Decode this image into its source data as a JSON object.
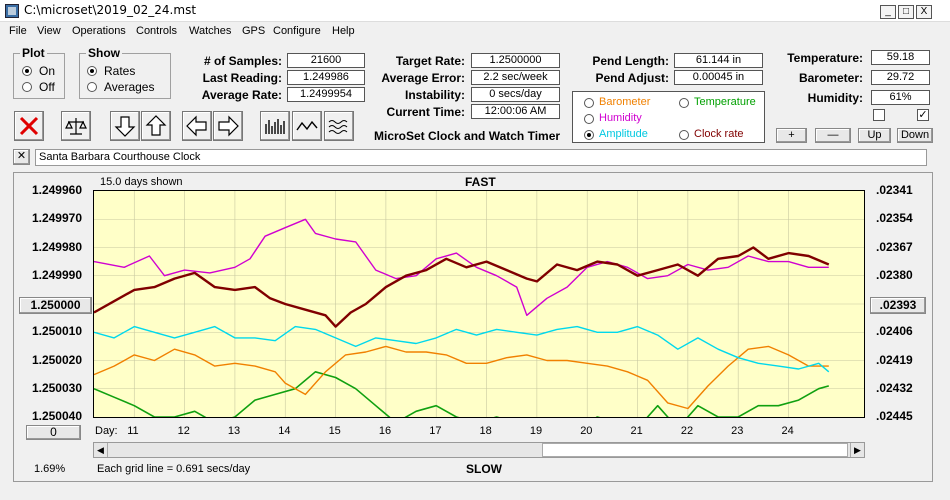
{
  "window": {
    "title": "C:\\microset\\2019_02_24.mst",
    "min_label": "_",
    "max_label": "□",
    "close_label": "X"
  },
  "menu": [
    "File",
    "View",
    "Operations",
    "Controls",
    "Watches",
    "GPS",
    "Configure",
    "Help"
  ],
  "plot_group": {
    "title": "Plot",
    "on": "On",
    "off": "Off",
    "selected": "On"
  },
  "show_group": {
    "title": "Show",
    "rates": "Rates",
    "averages": "Averages",
    "selected": "Rates"
  },
  "stats": {
    "samples_label": "# of Samples:",
    "samples": "21600",
    "last_label": "Last Reading:",
    "last": "1.249986",
    "avg_label": "Average Rate:",
    "avg": "1.2499954"
  },
  "rate": {
    "target_label": "Target Rate:",
    "target": "1.2500000",
    "error_label": "Average Error:",
    "error": "2.2 sec/week",
    "instab_label": "Instability:",
    "instab": "0 secs/day",
    "time_label": "Current Time:",
    "time": "12:00:06 AM"
  },
  "subtitle": "MicroSet Clock and Watch Timer",
  "pend": {
    "length_label": "Pend Length:",
    "length": "61.144 in",
    "adjust_label": "Pend Adjust:",
    "adjust": "0.00045 in"
  },
  "overlay": {
    "barometer": "Barometer",
    "temperature": "Temperature",
    "humidity": "Humidity",
    "amplitude": "Amplitude",
    "clock_rate": "Clock rate",
    "selected": "Amplitude"
  },
  "env": {
    "temp_label": "Temperature:",
    "temp": "59.18",
    "baro_label": "Barometer:",
    "baro": "29.72",
    "hum_label": "Humidity:",
    "hum": "61%",
    "btn_plus": "+",
    "btn_minus": "—",
    "btn_up": "Up",
    "btn_down": "Down",
    "check1": false,
    "check2": true
  },
  "clock_name": "Santa Barbara Courthouse Clock",
  "name_close": "✕",
  "colors": {
    "barometer": "#f08000",
    "temperature": "#00a000",
    "humidity": "#d000d0",
    "amplitude": "#00e0f0",
    "rate": "#800000",
    "plot_bg": "#ffffc8"
  },
  "chart_data": {
    "type": "line",
    "top_label": "FAST",
    "bottom_label": "SLOW",
    "days_shown": "15.0 days shown",
    "grid_note": "Each grid line = 0.691 secs/day",
    "percent": "1.69%",
    "x_axis_label": "Day:",
    "x_ticks": [
      "11",
      "12",
      "13",
      "14",
      "15",
      "16",
      "17",
      "18",
      "19",
      "20",
      "21",
      "22",
      "23",
      "24"
    ],
    "y_left_ticks": [
      "1.249960",
      "1.249970",
      "1.249980",
      "1.249990",
      "1.250000",
      "1.250010",
      "1.250020",
      "1.250030",
      "1.250040"
    ],
    "y_left_center_button": "1.250000",
    "y_left_bottom_button": "0",
    "y_right_ticks": [
      ".02341",
      ".02354",
      ".02367",
      ".02380",
      ".02393",
      ".02406",
      ".02419",
      ".02432",
      ".02445"
    ],
    "y_right_center_button": ".02393",
    "ylim": [
      1.24996,
      1.25004
    ],
    "xlim": [
      10.2,
      25.5
    ],
    "series": [
      {
        "name": "Clock rate",
        "color": "#800000",
        "width": 2.4,
        "x": [
          10.2,
          10.6,
          11.0,
          11.4,
          11.8,
          12.2,
          12.6,
          13.0,
          13.4,
          13.7,
          14.0,
          14.4,
          14.8,
          15.0,
          15.3,
          15.6,
          16.0,
          16.4,
          16.8,
          17.2,
          17.6,
          18.0,
          18.4,
          18.8,
          19.0,
          19.4,
          19.8,
          20.2,
          20.6,
          21.0,
          21.4,
          21.8,
          22.2,
          22.6,
          23.0,
          23.3,
          23.6,
          24.0,
          24.4,
          24.8
        ],
        "y": [
          1.250003,
          1.249999,
          1.249995,
          1.249994,
          1.249991,
          1.249989,
          1.249994,
          1.249995,
          1.249994,
          1.249998,
          1.25,
          1.250002,
          1.250004,
          1.250008,
          1.250003,
          1.25,
          1.249994,
          1.24999,
          1.249988,
          1.249984,
          1.249987,
          1.249985,
          1.249988,
          1.249991,
          1.249992,
          1.249986,
          1.249988,
          1.249985,
          1.249986,
          1.24999,
          1.249988,
          1.249986,
          1.24999,
          1.249984,
          1.249983,
          1.24998,
          1.249984,
          1.249982,
          1.249983,
          1.249986
        ]
      },
      {
        "name": "Humidity",
        "color": "#d000d0",
        "width": 1.4,
        "x": [
          10.2,
          10.8,
          11.3,
          11.6,
          12.0,
          12.5,
          13.0,
          13.3,
          13.6,
          14.0,
          14.4,
          14.6,
          15.0,
          15.4,
          15.8,
          16.2,
          16.6,
          17.0,
          17.4,
          17.8,
          18.2,
          18.6,
          18.8,
          19.2,
          19.6,
          20.0,
          20.4,
          20.8,
          21.2,
          21.6,
          22.0,
          22.4,
          22.8,
          23.2,
          23.6,
          24.0,
          24.4,
          24.8
        ],
        "y": [
          1.249985,
          1.249987,
          1.249983,
          1.24999,
          1.249988,
          1.249989,
          1.249987,
          1.249984,
          1.249976,
          1.249973,
          1.24997,
          1.249975,
          1.249977,
          1.249978,
          1.249988,
          1.249991,
          1.24999,
          1.249984,
          1.249982,
          1.249987,
          1.24999,
          1.249994,
          1.250004,
          1.249998,
          1.249994,
          1.249987,
          1.249985,
          1.249987,
          1.249991,
          1.24999,
          1.249986,
          1.249988,
          1.249987,
          1.249983,
          1.249985,
          1.249985,
          1.249987,
          1.249987
        ]
      },
      {
        "name": "Amplitude",
        "color": "#00d8ec",
        "width": 1.4,
        "x": [
          10.2,
          10.6,
          11.0,
          11.4,
          11.8,
          12.2,
          12.6,
          13.0,
          13.4,
          13.8,
          14.2,
          14.6,
          15.0,
          15.4,
          15.8,
          16.2,
          16.6,
          17.0,
          17.4,
          17.8,
          18.2,
          18.6,
          19.0,
          19.4,
          19.8,
          20.2,
          20.6,
          21.0,
          21.4,
          21.8,
          22.2,
          22.6,
          23.0,
          23.4,
          23.8,
          24.2,
          24.6,
          24.8
        ],
        "y": [
          1.25001,
          1.250012,
          1.250008,
          1.25001,
          1.250012,
          1.25001,
          1.250008,
          1.250012,
          1.250012,
          1.250013,
          1.250008,
          1.250009,
          1.250012,
          1.250015,
          1.250012,
          1.250013,
          1.250014,
          1.250012,
          1.250009,
          1.250011,
          1.250009,
          1.25001,
          1.250011,
          1.250009,
          1.250008,
          1.25001,
          1.25001,
          1.250008,
          1.250011,
          1.250016,
          1.250012,
          1.250016,
          1.250019,
          1.250021,
          1.250022,
          1.250023,
          1.250021,
          1.250024
        ]
      },
      {
        "name": "Barometer",
        "color": "#f08000",
        "width": 1.4,
        "x": [
          10.2,
          10.6,
          11.0,
          11.4,
          11.8,
          12.2,
          12.6,
          13.0,
          13.4,
          13.8,
          14.0,
          14.4,
          14.8,
          15.2,
          15.6,
          16.0,
          16.4,
          16.8,
          17.2,
          17.6,
          18.0,
          18.4,
          18.8,
          19.2,
          19.6,
          20.0,
          20.4,
          20.8,
          21.2,
          21.6,
          22.0,
          22.4,
          22.8,
          23.2,
          23.6,
          24.0,
          24.4,
          24.8
        ],
        "y": [
          1.250025,
          1.250022,
          1.250018,
          1.25002,
          1.250016,
          1.250018,
          1.250022,
          1.250021,
          1.250022,
          1.250024,
          1.250028,
          1.250032,
          1.250024,
          1.250018,
          1.250017,
          1.250015,
          1.250017,
          1.250017,
          1.250018,
          1.250021,
          1.250021,
          1.250019,
          1.250018,
          1.25002,
          1.25002,
          1.250021,
          1.250022,
          1.250024,
          1.250027,
          1.250035,
          1.250037,
          1.250029,
          1.250022,
          1.250016,
          1.250015,
          1.250018,
          1.250022,
          1.250022
        ]
      },
      {
        "name": "Temperature",
        "color": "#10a010",
        "width": 1.6,
        "x": [
          10.2,
          10.6,
          11.0,
          11.4,
          11.8,
          12.2,
          12.6,
          13.0,
          13.4,
          13.8,
          14.2,
          14.6,
          15.0,
          15.4,
          15.8,
          16.2,
          16.6,
          17.0,
          17.4,
          17.8,
          18.2,
          18.6,
          19.0,
          19.4,
          19.8,
          20.2,
          20.6,
          21.0,
          21.4,
          21.8,
          22.2,
          22.6,
          23.0,
          23.4,
          23.8,
          24.2,
          24.6,
          24.8
        ],
        "y": [
          1.25003,
          1.250033,
          1.250036,
          1.25004,
          1.25004,
          1.250038,
          1.250042,
          1.25004,
          1.250034,
          1.250032,
          1.25003,
          1.250024,
          1.250026,
          1.25003,
          1.250036,
          1.250042,
          1.250038,
          1.250036,
          1.25004,
          1.250042,
          1.25004,
          1.250042,
          1.250044,
          1.250042,
          1.250044,
          1.25004,
          1.250042,
          1.250044,
          1.250036,
          1.250044,
          1.250036,
          1.25004,
          1.25004,
          1.250036,
          1.250036,
          1.250034,
          1.25003,
          1.250029
        ]
      }
    ]
  }
}
